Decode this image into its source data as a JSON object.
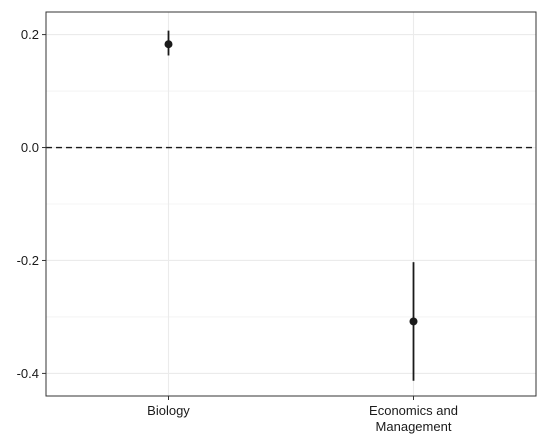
{
  "chart_data": {
    "type": "scatter",
    "title": "",
    "xlabel": "",
    "ylabel": "",
    "categories": [
      "Biology",
      "Economics and\nManagement"
    ],
    "points": [
      {
        "category": "Biology",
        "estimate": 0.183,
        "lower": 0.163,
        "upper": 0.207
      },
      {
        "category": "Economics and\nManagement",
        "estimate": -0.308,
        "lower": -0.413,
        "upper": -0.203
      }
    ],
    "reference_line": {
      "y": 0.0,
      "style": "dashed"
    },
    "yticks": [
      0.2,
      0.0,
      -0.2,
      -0.4
    ],
    "ytick_labels": [
      "0.2",
      "0.0",
      "-0.2",
      "-0.4"
    ],
    "ylim": [
      -0.44,
      0.24
    ],
    "grid": true,
    "legend": "none",
    "colors": {
      "point": "#1a1a1a",
      "grid": "#ebebeb",
      "panel_border": "#333333"
    }
  }
}
